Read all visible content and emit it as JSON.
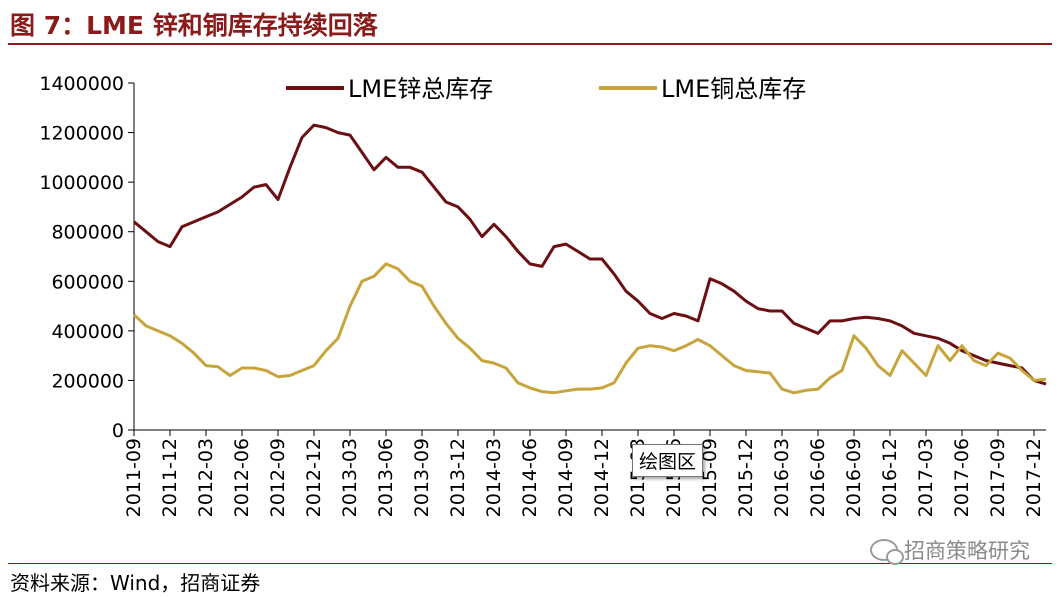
{
  "title": "图 7：LME 锌和铜库存持续回落",
  "source": "资料来源：Wind，招商证券",
  "watermark": "招商策略研究",
  "tooltip": "绘图区",
  "colors": {
    "zinc": "#6B0F12",
    "copper": "#C8A43C",
    "brand": "#8B1A1A"
  },
  "chart_data": {
    "type": "line",
    "title": "",
    "xlabel": "",
    "ylabel": "",
    "ylim": [
      0,
      1400000
    ],
    "yticks": [
      0,
      200000,
      400000,
      600000,
      800000,
      1000000,
      1200000,
      1400000
    ],
    "xlim": [
      "2011-09",
      "2018-01"
    ],
    "xticks": [
      "2011-09",
      "2011-12",
      "2012-03",
      "2012-06",
      "2012-09",
      "2012-12",
      "2013-03",
      "2013-06",
      "2013-09",
      "2013-12",
      "2014-03",
      "2014-06",
      "2014-09",
      "2014-12",
      "2015-03",
      "2015-06",
      "2015-09",
      "2015-12",
      "2016-03",
      "2016-06",
      "2016-09",
      "2016-12",
      "2017-03",
      "2017-06",
      "2017-09",
      "2017-12"
    ],
    "legend_position": "top",
    "grid": false,
    "series": [
      {
        "name": "LME锌总库存",
        "color": "#6B0F12",
        "points": [
          [
            "2011-09",
            840000
          ],
          [
            "2011-10",
            800000
          ],
          [
            "2011-11",
            760000
          ],
          [
            "2011-12",
            740000
          ],
          [
            "2012-01",
            820000
          ],
          [
            "2012-02",
            840000
          ],
          [
            "2012-03",
            860000
          ],
          [
            "2012-04",
            880000
          ],
          [
            "2012-05",
            910000
          ],
          [
            "2012-06",
            940000
          ],
          [
            "2012-07",
            980000
          ],
          [
            "2012-08",
            990000
          ],
          [
            "2012-09",
            930000
          ],
          [
            "2012-10",
            1060000
          ],
          [
            "2012-11",
            1180000
          ],
          [
            "2012-12",
            1230000
          ],
          [
            "2013-01",
            1220000
          ],
          [
            "2013-02",
            1200000
          ],
          [
            "2013-03",
            1190000
          ],
          [
            "2013-04",
            1120000
          ],
          [
            "2013-05",
            1050000
          ],
          [
            "2013-06",
            1100000
          ],
          [
            "2013-07",
            1060000
          ],
          [
            "2013-08",
            1060000
          ],
          [
            "2013-09",
            1040000
          ],
          [
            "2013-10",
            980000
          ],
          [
            "2013-11",
            920000
          ],
          [
            "2013-12",
            900000
          ],
          [
            "2014-01",
            850000
          ],
          [
            "2014-02",
            780000
          ],
          [
            "2014-03",
            830000
          ],
          [
            "2014-04",
            780000
          ],
          [
            "2014-05",
            720000
          ],
          [
            "2014-06",
            670000
          ],
          [
            "2014-07",
            660000
          ],
          [
            "2014-08",
            740000
          ],
          [
            "2014-09",
            750000
          ],
          [
            "2014-10",
            720000
          ],
          [
            "2014-11",
            690000
          ],
          [
            "2014-12",
            690000
          ],
          [
            "2015-01",
            630000
          ],
          [
            "2015-02",
            560000
          ],
          [
            "2015-03",
            520000
          ],
          [
            "2015-04",
            470000
          ],
          [
            "2015-05",
            450000
          ],
          [
            "2015-06",
            470000
          ],
          [
            "2015-07",
            460000
          ],
          [
            "2015-08",
            440000
          ],
          [
            "2015-09",
            610000
          ],
          [
            "2015-10",
            590000
          ],
          [
            "2015-11",
            560000
          ],
          [
            "2015-12",
            520000
          ],
          [
            "2016-01",
            490000
          ],
          [
            "2016-02",
            480000
          ],
          [
            "2016-03",
            480000
          ],
          [
            "2016-04",
            430000
          ],
          [
            "2016-05",
            410000
          ],
          [
            "2016-06",
            390000
          ],
          [
            "2016-07",
            440000
          ],
          [
            "2016-08",
            440000
          ],
          [
            "2016-09",
            450000
          ],
          [
            "2016-10",
            455000
          ],
          [
            "2016-11",
            450000
          ],
          [
            "2016-12",
            440000
          ],
          [
            "2017-01",
            420000
          ],
          [
            "2017-02",
            390000
          ],
          [
            "2017-03",
            380000
          ],
          [
            "2017-04",
            370000
          ],
          [
            "2017-05",
            350000
          ],
          [
            "2017-06",
            320000
          ],
          [
            "2017-07",
            300000
          ],
          [
            "2017-08",
            280000
          ],
          [
            "2017-09",
            270000
          ],
          [
            "2017-10",
            260000
          ],
          [
            "2017-11",
            250000
          ],
          [
            "2017-12",
            200000
          ],
          [
            "2018-01",
            185000
          ]
        ]
      },
      {
        "name": "LME铜总库存",
        "color": "#C8A43C",
        "points": [
          [
            "2011-09",
            465000
          ],
          [
            "2011-10",
            420000
          ],
          [
            "2011-11",
            400000
          ],
          [
            "2011-12",
            380000
          ],
          [
            "2012-01",
            350000
          ],
          [
            "2012-02",
            310000
          ],
          [
            "2012-03",
            260000
          ],
          [
            "2012-04",
            255000
          ],
          [
            "2012-05",
            220000
          ],
          [
            "2012-06",
            250000
          ],
          [
            "2012-07",
            250000
          ],
          [
            "2012-08",
            240000
          ],
          [
            "2012-09",
            215000
          ],
          [
            "2012-10",
            220000
          ],
          [
            "2012-11",
            240000
          ],
          [
            "2012-12",
            260000
          ],
          [
            "2013-01",
            320000
          ],
          [
            "2013-02",
            370000
          ],
          [
            "2013-03",
            500000
          ],
          [
            "2013-04",
            600000
          ],
          [
            "2013-05",
            620000
          ],
          [
            "2013-06",
            670000
          ],
          [
            "2013-07",
            650000
          ],
          [
            "2013-08",
            600000
          ],
          [
            "2013-09",
            580000
          ],
          [
            "2013-10",
            500000
          ],
          [
            "2013-11",
            430000
          ],
          [
            "2013-12",
            370000
          ],
          [
            "2014-01",
            330000
          ],
          [
            "2014-02",
            280000
          ],
          [
            "2014-03",
            270000
          ],
          [
            "2014-04",
            250000
          ],
          [
            "2014-05",
            190000
          ],
          [
            "2014-06",
            170000
          ],
          [
            "2014-07",
            155000
          ],
          [
            "2014-08",
            150000
          ],
          [
            "2014-09",
            158000
          ],
          [
            "2014-10",
            165000
          ],
          [
            "2014-11",
            165000
          ],
          [
            "2014-12",
            170000
          ],
          [
            "2015-01",
            190000
          ],
          [
            "2015-02",
            270000
          ],
          [
            "2015-03",
            330000
          ],
          [
            "2015-04",
            340000
          ],
          [
            "2015-05",
            335000
          ],
          [
            "2015-06",
            320000
          ],
          [
            "2015-07",
            340000
          ],
          [
            "2015-08",
            365000
          ],
          [
            "2015-09",
            340000
          ],
          [
            "2015-10",
            300000
          ],
          [
            "2015-11",
            260000
          ],
          [
            "2015-12",
            240000
          ],
          [
            "2016-01",
            235000
          ],
          [
            "2016-02",
            230000
          ],
          [
            "2016-03",
            165000
          ],
          [
            "2016-04",
            150000
          ],
          [
            "2016-05",
            160000
          ],
          [
            "2016-06",
            165000
          ],
          [
            "2016-07",
            210000
          ],
          [
            "2016-08",
            240000
          ],
          [
            "2016-09",
            380000
          ],
          [
            "2016-10",
            330000
          ],
          [
            "2016-11",
            260000
          ],
          [
            "2016-12",
            220000
          ],
          [
            "2017-01",
            320000
          ],
          [
            "2017-02",
            270000
          ],
          [
            "2017-03",
            220000
          ],
          [
            "2017-04",
            340000
          ],
          [
            "2017-05",
            280000
          ],
          [
            "2017-06",
            340000
          ],
          [
            "2017-07",
            280000
          ],
          [
            "2017-08",
            260000
          ],
          [
            "2017-09",
            310000
          ],
          [
            "2017-10",
            290000
          ],
          [
            "2017-11",
            240000
          ],
          [
            "2017-12",
            200000
          ],
          [
            "2018-01",
            205000
          ]
        ]
      }
    ]
  }
}
